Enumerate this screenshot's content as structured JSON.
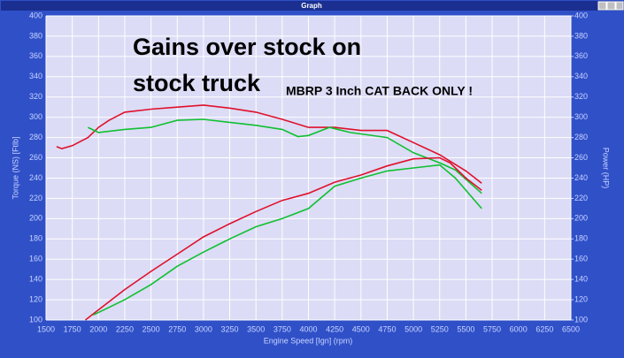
{
  "window": {
    "title": "Graph"
  },
  "chart_data": {
    "type": "line",
    "annotations": [
      "Gains over stock on",
      "stock truck",
      "MBRP 3 Inch CAT BACK ONLY !"
    ],
    "xlabel": "Engine Speed [Ign] (rpm)",
    "ylabel": "Torque (NS) [Ftlb]",
    "y2label": "Power (HP)",
    "xlim": [
      1500,
      6500
    ],
    "xticks": [
      1500,
      1750,
      2000,
      2250,
      2500,
      2750,
      3000,
      3250,
      3500,
      3750,
      4000,
      4250,
      4500,
      4750,
      5000,
      5250,
      5500,
      5750,
      6000,
      6250,
      6500
    ],
    "ylim": [
      100,
      400
    ],
    "yticks": [
      100,
      120,
      140,
      160,
      180,
      200,
      220,
      240,
      260,
      280,
      300,
      320,
      340,
      360,
      380,
      400
    ],
    "y2lim": [
      100,
      400
    ],
    "y2ticks": [
      100,
      120,
      140,
      160,
      180,
      200,
      220,
      240,
      260,
      280,
      300,
      320,
      340,
      360,
      380,
      400
    ],
    "grid": true,
    "series": [
      {
        "color": "#e0102a",
        "x": [
          1600,
          1650,
          1750,
          1900,
          2000,
          2100,
          2250,
          2500,
          2750,
          3000,
          3250,
          3500,
          3750,
          4000,
          4250,
          4500,
          4750,
          5000,
          5250,
          5500,
          5650
        ],
        "values": [
          271,
          269,
          272,
          280,
          290,
          297,
          305,
          308,
          310,
          312,
          309,
          305,
          298,
          290,
          290,
          287,
          287,
          275,
          263,
          247,
          235
        ]
      },
      {
        "color": "#10c030",
        "x": [
          1900,
          2000,
          2250,
          2500,
          2750,
          3000,
          3250,
          3500,
          3750,
          3900,
          4000,
          4200,
          4400,
          4750,
          5000,
          5250,
          5400,
          5650
        ],
        "values": [
          290,
          285,
          288,
          290,
          297,
          298,
          295,
          292,
          288,
          281,
          282,
          290,
          285,
          280,
          265,
          255,
          248,
          225
        ]
      },
      {
        "color": "#e0102a",
        "axis": "y2",
        "x": [
          1875,
          2000,
          2250,
          2500,
          2750,
          3000,
          3250,
          3500,
          3750,
          4000,
          4250,
          4500,
          4750,
          5000,
          5250,
          5350,
          5500,
          5650
        ],
        "values": [
          100,
          110,
          130,
          148,
          165,
          182,
          195,
          207,
          218,
          225,
          236,
          243,
          252,
          259,
          260,
          255,
          240,
          228
        ]
      },
      {
        "color": "#10c030",
        "axis": "y2",
        "x": [
          1950,
          2250,
          2500,
          2750,
          3000,
          3250,
          3500,
          3750,
          4000,
          4250,
          4500,
          4750,
          5000,
          5250,
          5400,
          5650
        ],
        "values": [
          105,
          120,
          135,
          153,
          167,
          180,
          192,
          200,
          210,
          232,
          240,
          247,
          250,
          253,
          240,
          210
        ]
      }
    ]
  }
}
